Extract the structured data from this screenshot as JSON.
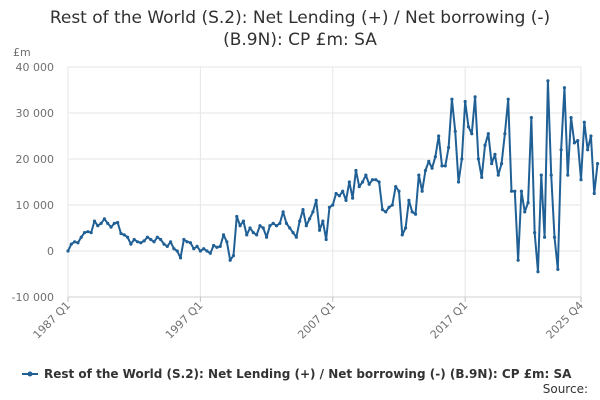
{
  "chart_data": {
    "type": "line",
    "title_line1": "Rest of the World (S.2): Net Lending (+) / Net borrowing (-)",
    "title_line2": "(B.9N): CP £m: SA",
    "ylabel": "£m",
    "xlabel": "",
    "ylim": [
      -10000,
      40000
    ],
    "yticks": [
      -10000,
      0,
      10000,
      20000,
      30000,
      40000
    ],
    "ytick_labels": [
      "-10 000",
      "0",
      "10 000",
      "20 000",
      "30 000",
      "40 000"
    ],
    "xlim": [
      "1987 Q1",
      "2025 Q4"
    ],
    "xticks": [
      "1987 Q1",
      "1997 Q1",
      "2007 Q1",
      "2017 Q1",
      "2025 Q4"
    ],
    "grid": true,
    "legend_position": "bottom",
    "source_label": "Source:",
    "series": [
      {
        "name": "Rest of the World (S.2): Net Lending (+) / Net borrowing (-) (B.9N): CP £m: SA",
        "color": "#206095",
        "start_year": 1987,
        "start_quarter": 1,
        "values": [
          0,
          1500,
          2000,
          1800,
          3000,
          4000,
          4200,
          4000,
          6500,
          5500,
          6000,
          7000,
          6000,
          5200,
          6000,
          6200,
          3800,
          3500,
          3000,
          1500,
          2500,
          2000,
          1800,
          2200,
          3000,
          2500,
          2000,
          3000,
          2500,
          1500,
          1000,
          2000,
          500,
          0,
          -1500,
          2500,
          2000,
          1800,
          500,
          1000,
          0,
          500,
          0,
          -500,
          1200,
          800,
          1000,
          3500,
          2000,
          -2000,
          -1000,
          7500,
          5500,
          6500,
          3500,
          5000,
          4000,
          3500,
          5500,
          5000,
          3000,
          5500,
          6000,
          5500,
          6000,
          8500,
          6000,
          5000,
          4000,
          3000,
          6500,
          9000,
          5500,
          7000,
          8500,
          11000,
          4500,
          6500,
          2500,
          9500,
          10000,
          12500,
          12000,
          13000,
          11000,
          15000,
          11500,
          17500,
          14000,
          15000,
          16500,
          14500,
          15500,
          15500,
          15000,
          9000,
          8500,
          9500,
          10000,
          14000,
          13000,
          3500,
          5000,
          11000,
          8500,
          8000,
          16500,
          13000,
          17500,
          19500,
          18000,
          20500,
          25000,
          18500,
          18500,
          22500,
          33000,
          26000,
          15000,
          20000,
          32500,
          27000,
          25500,
          33500,
          20000,
          16000,
          23000,
          25500,
          19000,
          21000,
          16500,
          19000,
          25500,
          33000,
          13000,
          13000,
          -2000,
          13000,
          8500,
          10500,
          29000,
          4000,
          -4500,
          16500,
          3000,
          37000,
          16500,
          3000,
          -4000,
          22000,
          35500,
          16500,
          29000,
          23500,
          24000,
          15500,
          28000,
          22000,
          25000,
          12500,
          19000
        ]
      }
    ]
  }
}
